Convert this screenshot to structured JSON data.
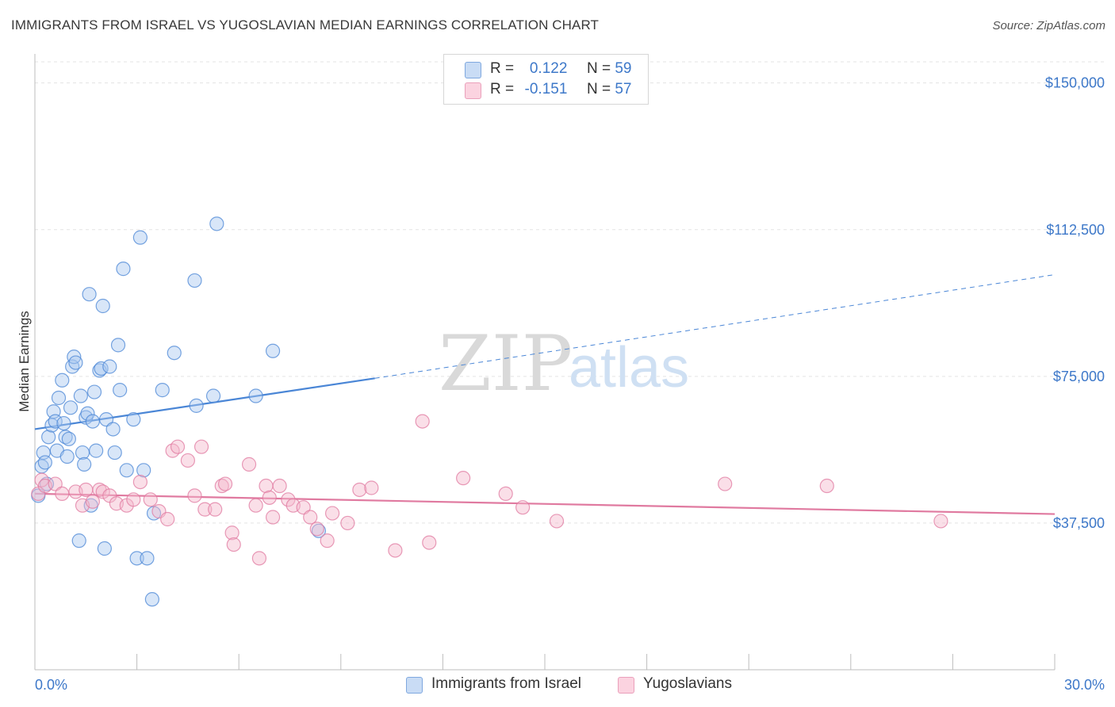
{
  "title": "IMMIGRANTS FROM ISRAEL VS YUGOSLAVIAN MEDIAN EARNINGS CORRELATION CHART",
  "source": "Source: ZipAtlas.com",
  "watermark": {
    "zip": "ZIP",
    "atlas": "atlas"
  },
  "legend_top": {
    "rows": [
      {
        "r_label": "R =",
        "r_value": "0.122",
        "n_label": "N =",
        "n_value": "59",
        "color": "#a9c8ef"
      },
      {
        "r_label": "R =",
        "r_value": "-0.151",
        "n_label": "N =",
        "n_value": "57",
        "color": "#f5b8cb"
      }
    ]
  },
  "legend_bottom": [
    {
      "label": "Immigrants from Israel",
      "color": "#a9c8ef"
    },
    {
      "label": "Yugoslavians",
      "color": "#f5b8cb"
    }
  ],
  "chart_data": {
    "type": "scatter",
    "title": "IMMIGRANTS FROM ISRAEL VS YUGOSLAVIAN MEDIAN EARNINGS CORRELATION CHART",
    "xlabel": "",
    "ylabel": "Median Earnings",
    "xlim": [
      0,
      30
    ],
    "ylim": [
      0,
      155000
    ],
    "x_tick_labels": [
      "0.0%",
      "30.0%"
    ],
    "y_ticks": [
      37500,
      75000,
      112500,
      150000
    ],
    "y_tick_labels": [
      "$37,500",
      "$75,000",
      "$112,500",
      "$150,000"
    ],
    "grid": true,
    "legend_position": "top-center",
    "series": [
      {
        "name": "Immigrants from Israel",
        "color": "#4a86d6",
        "fill": "#a9c8ef",
        "trend": {
          "x": [
            0.0,
            10.0
          ],
          "y": [
            61500,
            74500
          ],
          "dashed_to": [
            30.0,
            101000
          ]
        },
        "points": [
          [
            0.1,
            44500
          ],
          [
            0.2,
            52000
          ],
          [
            0.25,
            55500
          ],
          [
            0.3,
            53000
          ],
          [
            0.35,
            47500
          ],
          [
            0.4,
            59500
          ],
          [
            0.5,
            62500
          ],
          [
            0.55,
            66000
          ],
          [
            0.6,
            63500
          ],
          [
            0.65,
            56000
          ],
          [
            0.7,
            69500
          ],
          [
            0.8,
            74000
          ],
          [
            0.85,
            63000
          ],
          [
            0.9,
            59500
          ],
          [
            0.95,
            54500
          ],
          [
            1.0,
            59000
          ],
          [
            1.05,
            67000
          ],
          [
            1.1,
            77500
          ],
          [
            1.15,
            80000
          ],
          [
            1.2,
            78500
          ],
          [
            1.3,
            33000
          ],
          [
            1.35,
            70000
          ],
          [
            1.4,
            55500
          ],
          [
            1.45,
            52500
          ],
          [
            1.5,
            64500
          ],
          [
            1.55,
            65500
          ],
          [
            1.6,
            96000
          ],
          [
            1.65,
            42000
          ],
          [
            1.7,
            63500
          ],
          [
            1.75,
            71000
          ],
          [
            1.8,
            56000
          ],
          [
            1.9,
            76500
          ],
          [
            1.95,
            77000
          ],
          [
            2.0,
            93000
          ],
          [
            2.05,
            31000
          ],
          [
            2.1,
            64000
          ],
          [
            2.2,
            77500
          ],
          [
            2.3,
            61500
          ],
          [
            2.35,
            55500
          ],
          [
            2.45,
            83000
          ],
          [
            2.5,
            71500
          ],
          [
            2.6,
            102500
          ],
          [
            2.7,
            51000
          ],
          [
            2.9,
            64000
          ],
          [
            3.0,
            28500
          ],
          [
            3.1,
            110500
          ],
          [
            3.2,
            51000
          ],
          [
            3.3,
            28500
          ],
          [
            3.45,
            18000
          ],
          [
            3.5,
            40000
          ],
          [
            3.75,
            71500
          ],
          [
            4.1,
            81000
          ],
          [
            4.7,
            99500
          ],
          [
            4.75,
            67500
          ],
          [
            5.25,
            70000
          ],
          [
            5.35,
            114000
          ],
          [
            6.5,
            70000
          ],
          [
            7.0,
            81500
          ],
          [
            8.35,
            35500
          ]
        ]
      },
      {
        "name": "Yugoslavians",
        "color": "#e07aa0",
        "fill": "#f5b8cb",
        "trend": {
          "x": [
            0.0,
            30.0
          ],
          "y": [
            45000,
            39800
          ]
        },
        "points": [
          [
            0.1,
            45000
          ],
          [
            0.2,
            48500
          ],
          [
            0.3,
            47000
          ],
          [
            0.6,
            47500
          ],
          [
            0.8,
            45000
          ],
          [
            1.2,
            45500
          ],
          [
            1.4,
            42000
          ],
          [
            1.5,
            46000
          ],
          [
            1.7,
            43000
          ],
          [
            1.9,
            46000
          ],
          [
            2.0,
            45500
          ],
          [
            2.2,
            44500
          ],
          [
            2.4,
            42500
          ],
          [
            2.7,
            42000
          ],
          [
            2.9,
            43500
          ],
          [
            3.1,
            48000
          ],
          [
            3.4,
            43500
          ],
          [
            3.65,
            40500
          ],
          [
            3.9,
            38500
          ],
          [
            4.05,
            56000
          ],
          [
            4.2,
            57000
          ],
          [
            4.5,
            53500
          ],
          [
            4.7,
            44500
          ],
          [
            4.9,
            57000
          ],
          [
            5.0,
            41000
          ],
          [
            5.3,
            41000
          ],
          [
            5.5,
            47000
          ],
          [
            5.6,
            47500
          ],
          [
            5.8,
            35000
          ],
          [
            5.85,
            32000
          ],
          [
            6.3,
            52500
          ],
          [
            6.5,
            42000
          ],
          [
            6.6,
            28500
          ],
          [
            6.8,
            47000
          ],
          [
            6.9,
            44000
          ],
          [
            7.0,
            39000
          ],
          [
            7.2,
            47000
          ],
          [
            7.45,
            43500
          ],
          [
            7.6,
            42000
          ],
          [
            7.9,
            41500
          ],
          [
            8.1,
            39000
          ],
          [
            8.3,
            36000
          ],
          [
            8.6,
            33000
          ],
          [
            8.75,
            40000
          ],
          [
            9.2,
            37500
          ],
          [
            9.55,
            46000
          ],
          [
            9.9,
            46500
          ],
          [
            10.6,
            30500
          ],
          [
            11.4,
            63500
          ],
          [
            11.6,
            32500
          ],
          [
            12.6,
            49000
          ],
          [
            13.85,
            45000
          ],
          [
            14.35,
            41500
          ],
          [
            15.35,
            38000
          ],
          [
            20.3,
            47500
          ],
          [
            23.3,
            47000
          ],
          [
            26.65,
            38000
          ]
        ]
      }
    ]
  }
}
